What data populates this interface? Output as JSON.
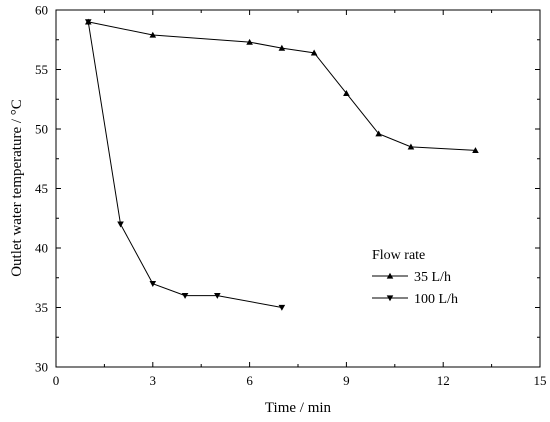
{
  "chart_data": {
    "type": "line",
    "xlabel": "Time / min",
    "ylabel": "Outlet water temperature / °C",
    "xlim": [
      0,
      15
    ],
    "ylim": [
      30,
      60
    ],
    "xticks": [
      0,
      3,
      6,
      9,
      12,
      15
    ],
    "yticks": [
      30,
      35,
      40,
      45,
      50,
      55,
      60
    ],
    "grid": false,
    "legend": {
      "title": "Flow rate",
      "placement": "center-right"
    },
    "series": [
      {
        "name": "35  L/h",
        "marker": "triangle-up",
        "x": [
          1,
          3,
          6,
          7,
          8,
          9,
          10,
          11,
          13
        ],
        "y": [
          59.0,
          57.9,
          57.3,
          56.8,
          56.4,
          53.0,
          49.6,
          48.5,
          48.2
        ]
      },
      {
        "name": "100 L/h",
        "marker": "triangle-down",
        "x": [
          1,
          2,
          3,
          4,
          5,
          7
        ],
        "y": [
          59.0,
          42.0,
          37.0,
          36.0,
          36.0,
          35.0
        ]
      }
    ]
  }
}
